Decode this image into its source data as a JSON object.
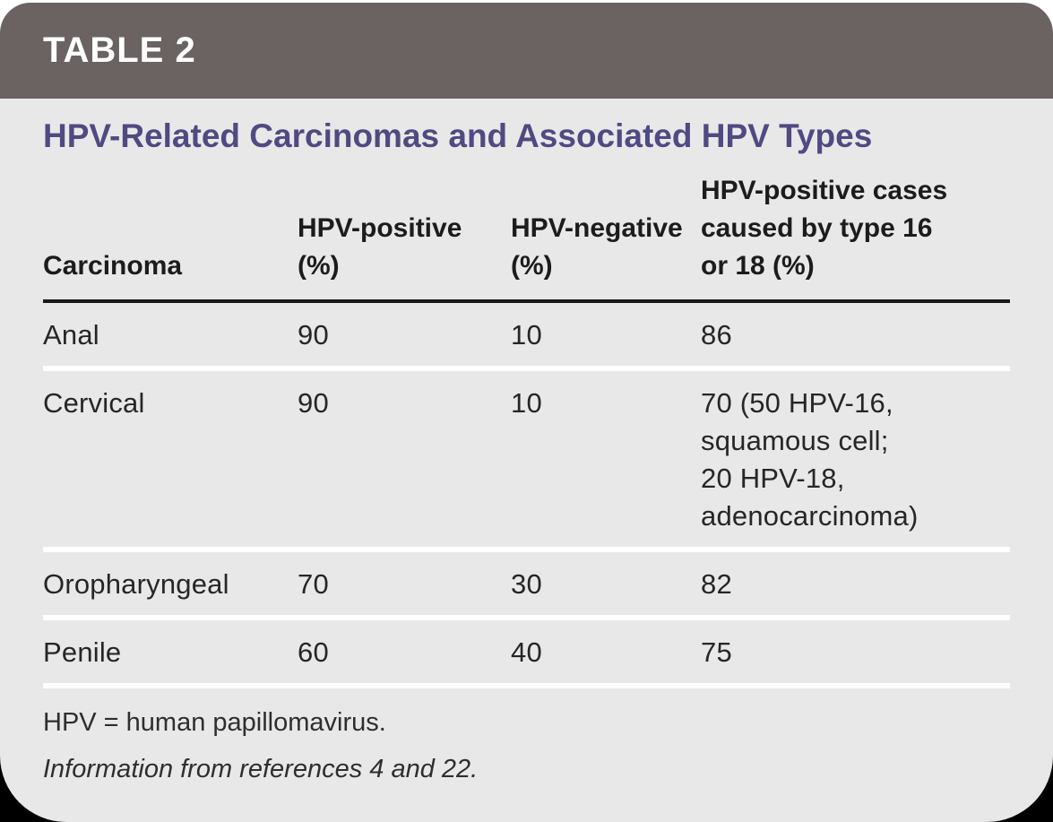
{
  "table_label": "TABLE 2",
  "title": "HPV-Related Carcinomas and Associated HPV Types",
  "table": {
    "columns": [
      {
        "id": "carcinoma",
        "lines": [
          "Carcinoma"
        ]
      },
      {
        "id": "hpv_positive_pct",
        "lines": [
          "HPV-positive",
          "(%)"
        ]
      },
      {
        "id": "hpv_negative_pct",
        "lines": [
          "HPV-negative",
          "(%)"
        ]
      },
      {
        "id": "hpv_type16_18_pct",
        "lines": [
          "HPV-positive cases",
          "caused by type 16",
          "or 18 (%)"
        ]
      }
    ],
    "rows": [
      {
        "carcinoma": "Anal",
        "hpv_positive": "90",
        "hpv_negative": "10",
        "type16_18_lines": [
          "86"
        ]
      },
      {
        "carcinoma": "Cervical",
        "hpv_positive": "90",
        "hpv_negative": "10",
        "type16_18_lines": [
          "70 (50 HPV-16,",
          "squamous cell;",
          "20 HPV-18,",
          "adenocarcinoma)"
        ]
      },
      {
        "carcinoma": "Oropharyngeal",
        "hpv_positive": "70",
        "hpv_negative": "30",
        "type16_18_lines": [
          "82"
        ]
      },
      {
        "carcinoma": "Penile",
        "hpv_positive": "60",
        "hpv_negative": "40",
        "type16_18_lines": [
          "75"
        ]
      }
    ]
  },
  "footnotes": {
    "abbreviation": "HPV = human papillomavirus.",
    "source": "Information from references 4 and 22."
  },
  "colors": {
    "header_bar": "#6a6361",
    "title_text": "#504a82",
    "body_background": "#e9e8e8",
    "header_rule": "#1a1a1a",
    "row_separator": "#ffffff",
    "body_text": "#262626",
    "label_text": "#ffffff"
  }
}
